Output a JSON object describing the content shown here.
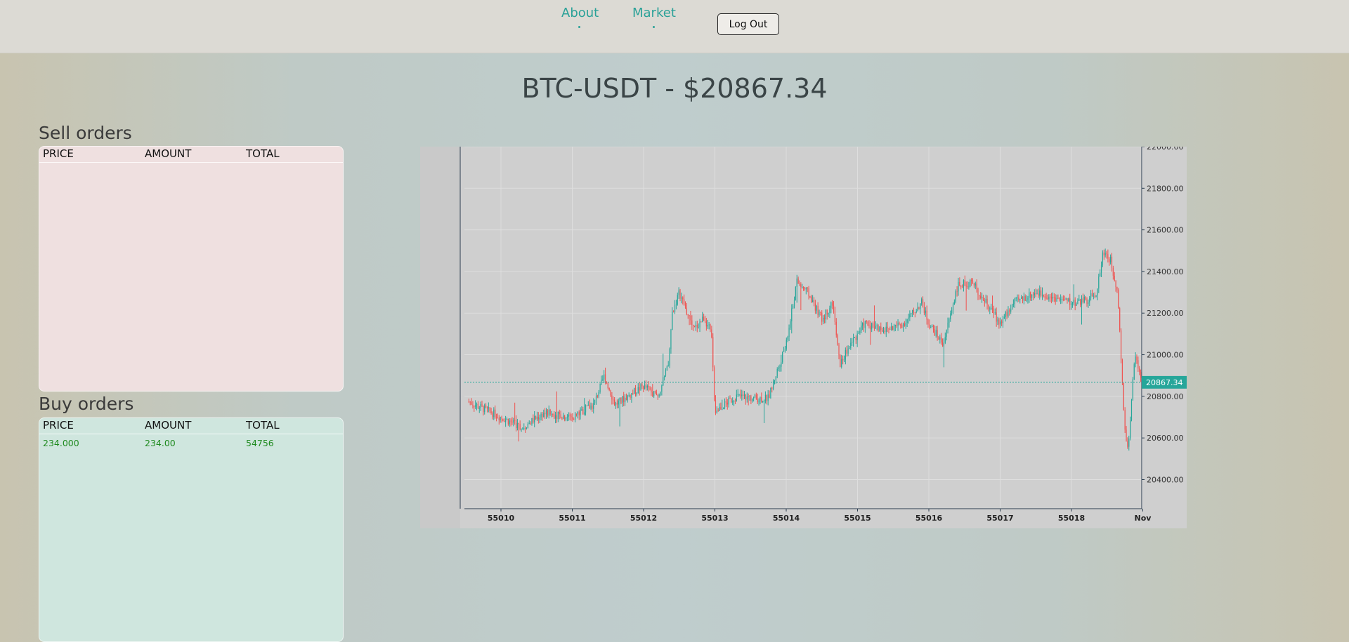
{
  "nav": {
    "about": "About",
    "market": "Market",
    "logout": "Log Out"
  },
  "headline": "BTC-USDT - $20867.34",
  "sell_orders": {
    "title": "Sell orders",
    "columns": [
      "PRICE",
      "AMOUNT",
      "TOTAL"
    ],
    "rows": []
  },
  "buy_orders": {
    "title": "Buy orders",
    "columns": [
      "PRICE",
      "AMOUNT",
      "TOTAL"
    ],
    "rows": [
      {
        "price": "234.000",
        "amount": "234.00",
        "total": "54756"
      }
    ]
  },
  "colors": {
    "accent": "#2aa198",
    "up": "#26a69a",
    "down": "#ef5350",
    "sell_panel": "#efe0e0",
    "buy_panel": "#cfe6de"
  },
  "chart_data": {
    "type": "candlestick",
    "x_tick_labels": [
      "55010",
      "55011",
      "55012",
      "55013",
      "55014",
      "55015",
      "55016",
      "55017",
      "55018",
      "Nov"
    ],
    "y_tick_labels": [
      "22000.00",
      "21800.00",
      "21600.00",
      "21400.00",
      "21200.00",
      "21000.00",
      "20800.00",
      "20600.00",
      "20400.00"
    ],
    "ylim": [
      20260,
      22000
    ],
    "current_price": 20867.34,
    "current_price_label": "20867.34",
    "grid": true,
    "approx_path": [
      [
        0,
        20700
      ],
      [
        0.3,
        20650
      ],
      [
        0.6,
        20720
      ],
      [
        1.0,
        20700
      ],
      [
        1.3,
        20760
      ],
      [
        1.45,
        20900
      ],
      [
        1.6,
        20760
      ],
      [
        2.0,
        20850
      ],
      [
        2.2,
        20800
      ],
      [
        2.35,
        20950
      ],
      [
        2.4,
        21200
      ],
      [
        2.5,
        21300
      ],
      [
        2.7,
        21120
      ],
      [
        2.85,
        21180
      ],
      [
        2.95,
        21100
      ],
      [
        3.0,
        20730
      ],
      [
        3.3,
        20800
      ],
      [
        3.6,
        20790
      ],
      [
        3.75,
        20790
      ],
      [
        3.85,
        20900
      ],
      [
        4.0,
        21050
      ],
      [
        4.15,
        21350
      ],
      [
        4.3,
        21300
      ],
      [
        4.5,
        21170
      ],
      [
        4.65,
        21250
      ],
      [
        4.75,
        20950
      ],
      [
        4.9,
        21050
      ],
      [
        5.1,
        21150
      ],
      [
        5.4,
        21120
      ],
      [
        5.65,
        21150
      ],
      [
        5.9,
        21250
      ],
      [
        6.0,
        21150
      ],
      [
        6.2,
        21050
      ],
      [
        6.4,
        21330
      ],
      [
        6.6,
        21350
      ],
      [
        6.8,
        21250
      ],
      [
        7.0,
        21150
      ],
      [
        7.2,
        21250
      ],
      [
        7.5,
        21300
      ],
      [
        7.7,
        21280
      ],
      [
        8.0,
        21250
      ],
      [
        8.2,
        21260
      ],
      [
        8.35,
        21300
      ],
      [
        8.45,
        21500
      ],
      [
        8.55,
        21450
      ],
      [
        8.65,
        21300
      ],
      [
        8.72,
        20800
      ],
      [
        8.78,
        20520
      ],
      [
        8.82,
        20650
      ],
      [
        8.86,
        20880
      ],
      [
        8.9,
        21000
      ],
      [
        8.96,
        20900
      ],
      [
        9.0,
        20860
      ]
    ]
  }
}
